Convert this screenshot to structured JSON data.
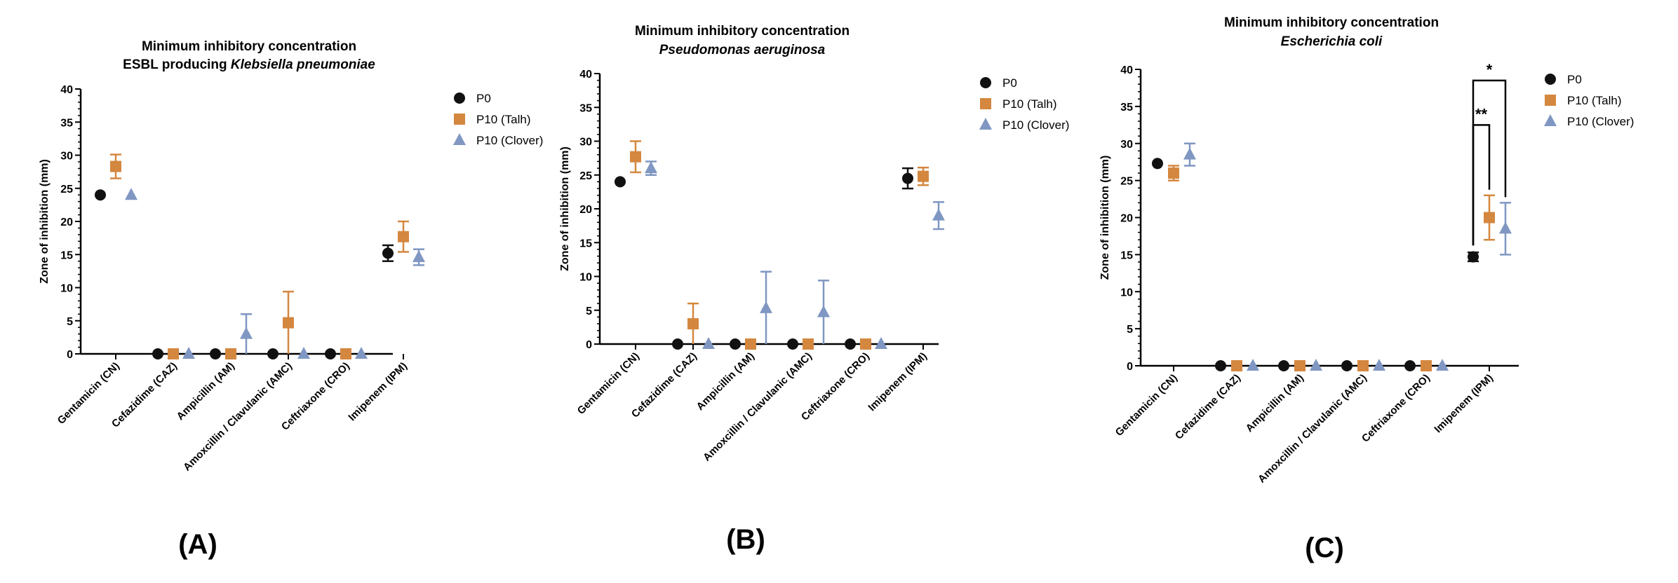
{
  "colors": {
    "P0": "#111111",
    "P10_Talh": "#d4873f",
    "P10_Clover": "#7f97c2",
    "axis": "#000000"
  },
  "categories": [
    "Gentamicin (CN)",
    "Cefazidime (CAZ)",
    "Ampicillin (AM)",
    "Amoxcillin / Clavulanic (AMC)",
    "Ceftriaxone (CRO)",
    "Imipenem (IPM)"
  ],
  "legend": [
    "P0",
    "P10 (Talh)",
    "P10 (Clover)"
  ],
  "chart_data": [
    {
      "type": "scatter",
      "panel_label": "(A)",
      "title": "Minimum inhibitory concentration",
      "subtitle_prefix": "ESBL producing ",
      "subtitle_italic": "Klebsiella pneumoniae",
      "ylabel": "Zone of inhibition (mm)",
      "ylim": [
        0,
        40
      ],
      "yticks": [
        0,
        5,
        10,
        15,
        20,
        25,
        30,
        35,
        40
      ],
      "categories": [
        "Gentamicin (CN)",
        "Cefazidime (CAZ)",
        "Ampicillin (AM)",
        "Amoxcillin / Clavulanic (AMC)",
        "Ceftriaxone (CRO)",
        "Imipenem (IPM)"
      ],
      "series": [
        {
          "name": "P0",
          "values": [
            24,
            0,
            0,
            0,
            0,
            15.2
          ],
          "err": [
            0,
            0,
            0,
            0,
            0,
            1.2
          ]
        },
        {
          "name": "P10 (Talh)",
          "values": [
            28.3,
            0,
            0,
            4.7,
            0,
            17.7
          ],
          "err": [
            1.8,
            0,
            0,
            4.7,
            0,
            2.3
          ]
        },
        {
          "name": "P10 (Clover)",
          "values": [
            24,
            0,
            3,
            0,
            0,
            14.6
          ],
          "err": [
            0,
            0,
            3,
            0,
            0,
            1.2
          ]
        }
      ],
      "annotations": []
    },
    {
      "type": "scatter",
      "panel_label": "(B)",
      "title": "Minimum inhibitory concentration",
      "subtitle_prefix": "",
      "subtitle_italic": "Pseudomonas aeruginosa",
      "ylabel": "Zone of inhibition (mm)",
      "ylim": [
        0,
        40
      ],
      "yticks": [
        0,
        5,
        10,
        15,
        20,
        25,
        30,
        35,
        40
      ],
      "categories": [
        "Gentamicin (CN)",
        "Cefazidime (CAZ)",
        "Ampicillin (AM)",
        "Amoxcillin / Clavulanic (AMC)",
        "Ceftriaxone (CRO)",
        "Imipenem (IPM)"
      ],
      "series": [
        {
          "name": "P0",
          "values": [
            24,
            0,
            0,
            0,
            0,
            24.5
          ],
          "err": [
            0,
            0,
            0,
            0,
            0,
            1.5
          ]
        },
        {
          "name": "P10 (Talh)",
          "values": [
            27.7,
            3,
            0,
            0,
            0,
            24.8
          ],
          "err": [
            2.3,
            3,
            0,
            0,
            0,
            1.3
          ]
        },
        {
          "name": "P10 (Clover)",
          "values": [
            26,
            0,
            5.3,
            4.7,
            0,
            19
          ],
          "err": [
            1,
            0,
            5.4,
            4.7,
            0,
            2
          ]
        }
      ],
      "annotations": []
    },
    {
      "type": "scatter",
      "panel_label": "(C)",
      "title": "Minimum inhibitory concentration",
      "subtitle_prefix": "",
      "subtitle_italic": "Escherichia coli",
      "ylabel": "Zone of inhibition (mm)",
      "ylim": [
        0,
        40
      ],
      "yticks": [
        0,
        5,
        10,
        15,
        20,
        25,
        30,
        35,
        40
      ],
      "categories": [
        "Gentamicin (CN)",
        "Cefazidime (CAZ)",
        "Ampicillin (AM)",
        "Amoxcillin / Clavulanic (AMC)",
        "Ceftriaxone (CRO)",
        "Imipenem (IPM)"
      ],
      "series": [
        {
          "name": "P0",
          "values": [
            27.3,
            0,
            0,
            0,
            0,
            14.7
          ],
          "err": [
            0,
            0,
            0,
            0,
            0,
            0.6
          ]
        },
        {
          "name": "P10 (Talh)",
          "values": [
            26,
            0,
            0,
            0,
            0,
            20
          ],
          "err": [
            1,
            0,
            0,
            0,
            0,
            3
          ]
        },
        {
          "name": "P10 (Clover)",
          "values": [
            28.5,
            0,
            0,
            0,
            0,
            18.5
          ],
          "err": [
            1.5,
            0,
            0,
            0,
            0,
            3.5
          ]
        }
      ],
      "annotations": [
        {
          "text": "*",
          "category": 5,
          "from_series": 0,
          "to_series": 2,
          "level": 38.5
        },
        {
          "text": "**",
          "category": 5,
          "from_series": 0,
          "to_series": 1,
          "level": 32.5
        }
      ]
    }
  ]
}
